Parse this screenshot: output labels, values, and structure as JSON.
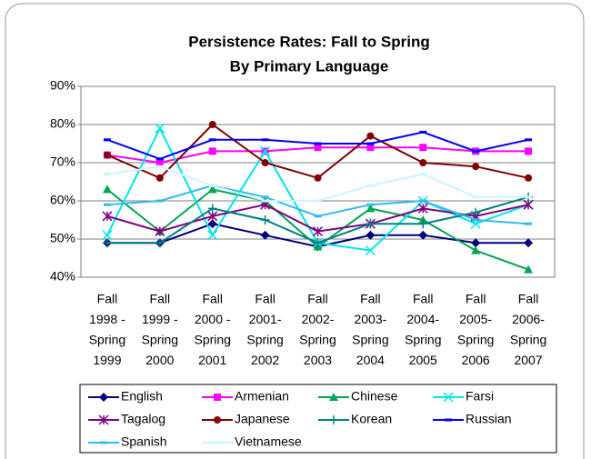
{
  "chart_data": {
    "type": "line",
    "title": "Persistence Rates:  Fall to Spring",
    "subtitle": "By Primary Language",
    "categories": [
      [
        "Fall",
        "1998 -",
        "Spring",
        "1999"
      ],
      [
        "Fall",
        "1999 -",
        "Spring",
        "2000"
      ],
      [
        "Fall",
        "2000 -",
        "Spring",
        "2001"
      ],
      [
        "Fall",
        "2001-",
        "Spring",
        "2002"
      ],
      [
        "Fall",
        "2002-",
        "Spring",
        "2003"
      ],
      [
        "Fall",
        "2003-",
        "Spring",
        "2004"
      ],
      [
        "Fall",
        "2004-",
        "Spring",
        "2005"
      ],
      [
        "Fall",
        "2005-",
        "Spring",
        "2006"
      ],
      [
        "Fall",
        "2006-",
        "Spring",
        "2007"
      ]
    ],
    "ylim": [
      40,
      90
    ],
    "yticks": [
      {
        "value": 40,
        "label": "40%"
      },
      {
        "value": 50,
        "label": "50%"
      },
      {
        "value": 60,
        "label": "60%"
      },
      {
        "value": 70,
        "label": "70%"
      },
      {
        "value": 80,
        "label": "80%"
      },
      {
        "value": 90,
        "label": "90%"
      }
    ],
    "grid": true,
    "legend": "bottom",
    "series": [
      {
        "name": "English",
        "color": "#000080",
        "marker": "diamond",
        "values": [
          49,
          49,
          54,
          51,
          48,
          51,
          51,
          49,
          49
        ]
      },
      {
        "name": "Armenian",
        "color": "#ff00ff",
        "marker": "square",
        "values": [
          72,
          70,
          73,
          73,
          74,
          74,
          74,
          73,
          73
        ]
      },
      {
        "name": "Chinese",
        "color": "#00a651",
        "marker": "triangle",
        "values": [
          63,
          52,
          63,
          60,
          48,
          58,
          55,
          47,
          42
        ]
      },
      {
        "name": "Farsi",
        "color": "#00e5ee",
        "marker": "x",
        "values": [
          51,
          79,
          51,
          73,
          49,
          47,
          60,
          54,
          59
        ]
      },
      {
        "name": "Tagalog",
        "color": "#800080",
        "marker": "star",
        "values": [
          56,
          52,
          56,
          59,
          52,
          54,
          58,
          56,
          59
        ]
      },
      {
        "name": "Japanese",
        "color": "#800000",
        "marker": "circle",
        "values": [
          72,
          66,
          80,
          70,
          66,
          77,
          70,
          69,
          66
        ]
      },
      {
        "name": "Korean",
        "color": "#008080",
        "marker": "plus",
        "values": [
          49,
          49,
          58,
          55,
          49,
          54,
          54,
          57,
          61
        ]
      },
      {
        "name": "Russian",
        "color": "#0000ff",
        "marker": "dash",
        "values": [
          76,
          71,
          76,
          76,
          75,
          75,
          78,
          73,
          76
        ]
      },
      {
        "name": "Spanish",
        "color": "#33bbf0",
        "marker": "dash",
        "values": [
          59,
          60,
          64,
          61,
          56,
          59,
          60,
          55,
          54
        ]
      },
      {
        "name": "Vietnamese",
        "color": "#ccf5ff",
        "marker": "dash",
        "values": [
          67,
          69,
          64,
          60,
          60,
          64,
          67,
          61,
          61
        ]
      }
    ]
  }
}
